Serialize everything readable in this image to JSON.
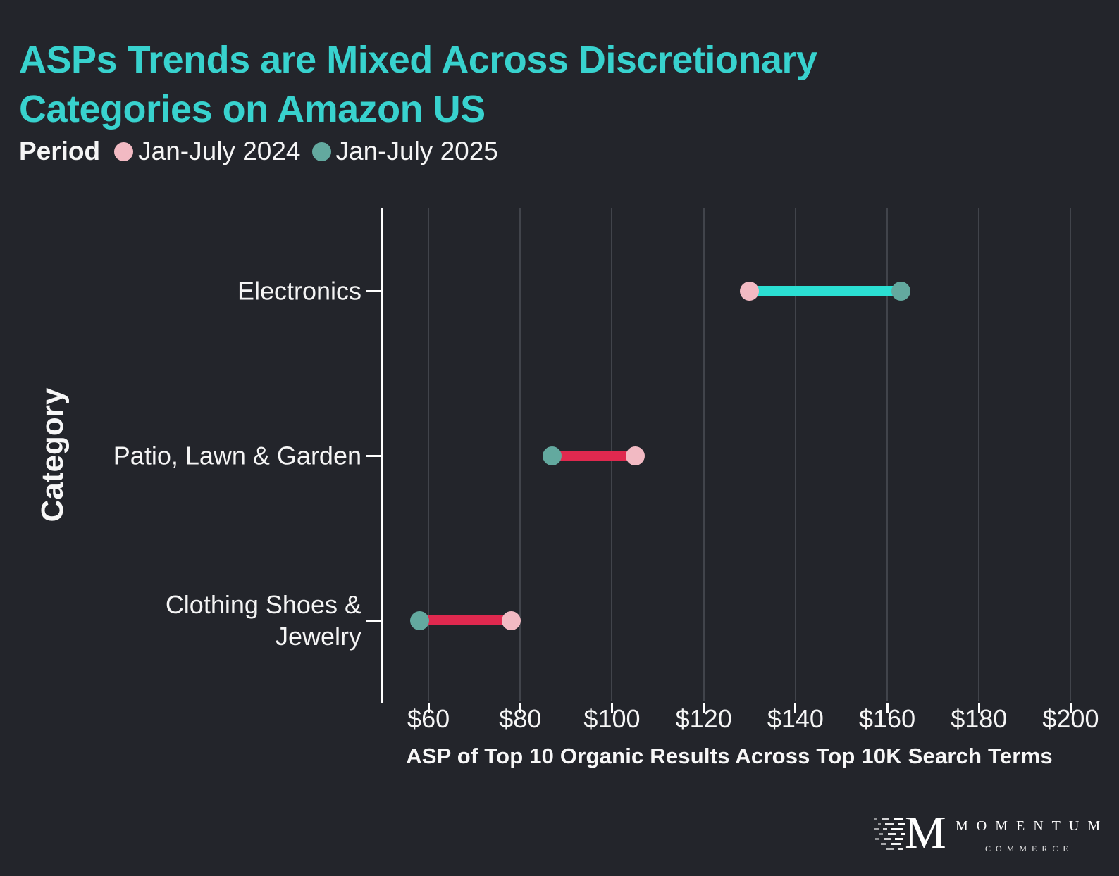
{
  "page": {
    "title_lines": [
      "ASPs Trends are Mixed Across Discretionary",
      "Categories on Amazon US"
    ],
    "title_color": "#38D2CE",
    "background_color": "#23252B"
  },
  "chart_data": {
    "type": "dumbbell",
    "title": "ASPs Trends are Mixed Across Discretionary Categories on Amazon US",
    "legend_title": "Period",
    "categories": [
      "Electronics",
      "Patio, Lawn & Garden",
      "Clothing Shoes & Jewelry"
    ],
    "category_label_lines": [
      [
        "Electronics"
      ],
      [
        "Patio, Lawn & Garden"
      ],
      [
        "Clothing Shoes &",
        "Jewelry"
      ]
    ],
    "series": [
      {
        "name": "Jan-July 2024",
        "color": "#F2BAC3",
        "values": [
          130,
          105,
          78
        ]
      },
      {
        "name": "Jan-July 2025",
        "color": "#63A99F",
        "values": [
          163,
          87,
          58
        ]
      }
    ],
    "connector_colors": [
      "#2BDFD3",
      "#E0294F",
      "#E0294F"
    ],
    "xlabel": "ASP of Top 10 Organic Results Across Top 10K Search Terms",
    "ylabel": "Category",
    "x_ticks": [
      60,
      80,
      100,
      120,
      140,
      160,
      180,
      200
    ],
    "tick_prefix": "$",
    "xlim": [
      50,
      205
    ],
    "grid": true,
    "legend_position": "top-left",
    "gridline_color": "#41444B",
    "axis_color": "#FFFFFF"
  },
  "logo": {
    "monogram": "M",
    "name": "MOMENTUM",
    "subtitle": "COMMERCE"
  }
}
